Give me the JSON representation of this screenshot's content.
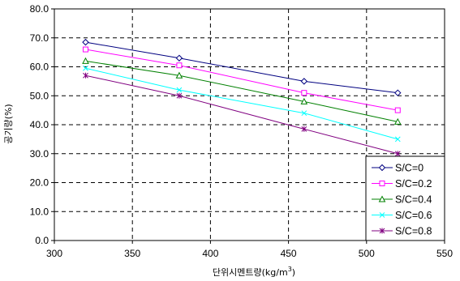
{
  "chart_data": {
    "type": "line",
    "title": "",
    "xlabel": "단위시멘트량(kg/m",
    "xlabel_superscript": "3",
    "xlabel_suffix": ")",
    "ylabel": "공기량(%)",
    "xlim": [
      300,
      550
    ],
    "ylim": [
      0,
      80
    ],
    "x_ticks": [
      "300",
      "350",
      "400",
      "450",
      "500",
      "550"
    ],
    "y_ticks": [
      "0.0",
      "10.0",
      "20.0",
      "30.0",
      "40.0",
      "50.0",
      "60.0",
      "70.0",
      "80.0"
    ],
    "grid": true,
    "legend_position": "bottom-right",
    "x": [
      320,
      380,
      460,
      520
    ],
    "series": [
      {
        "name": "S/C=0",
        "values": [
          68.5,
          63.0,
          55.0,
          51.0
        ],
        "color": "#000080",
        "marker": "diamond"
      },
      {
        "name": "S/C=0.2",
        "values": [
          66.0,
          60.5,
          51.0,
          45.0
        ],
        "color": "#ff00ff",
        "marker": "square"
      },
      {
        "name": "S/C=0.4",
        "values": [
          62.0,
          57.0,
          48.0,
          41.0
        ],
        "color": "#008000",
        "marker": "triangle"
      },
      {
        "name": "S/C=0.6",
        "values": [
          59.5,
          52.0,
          44.0,
          35.0
        ],
        "color": "#00ffff",
        "marker": "x"
      },
      {
        "name": "S/C=0.8",
        "values": [
          57.0,
          50.0,
          38.5,
          30.0
        ],
        "color": "#800080",
        "marker": "star"
      }
    ]
  }
}
